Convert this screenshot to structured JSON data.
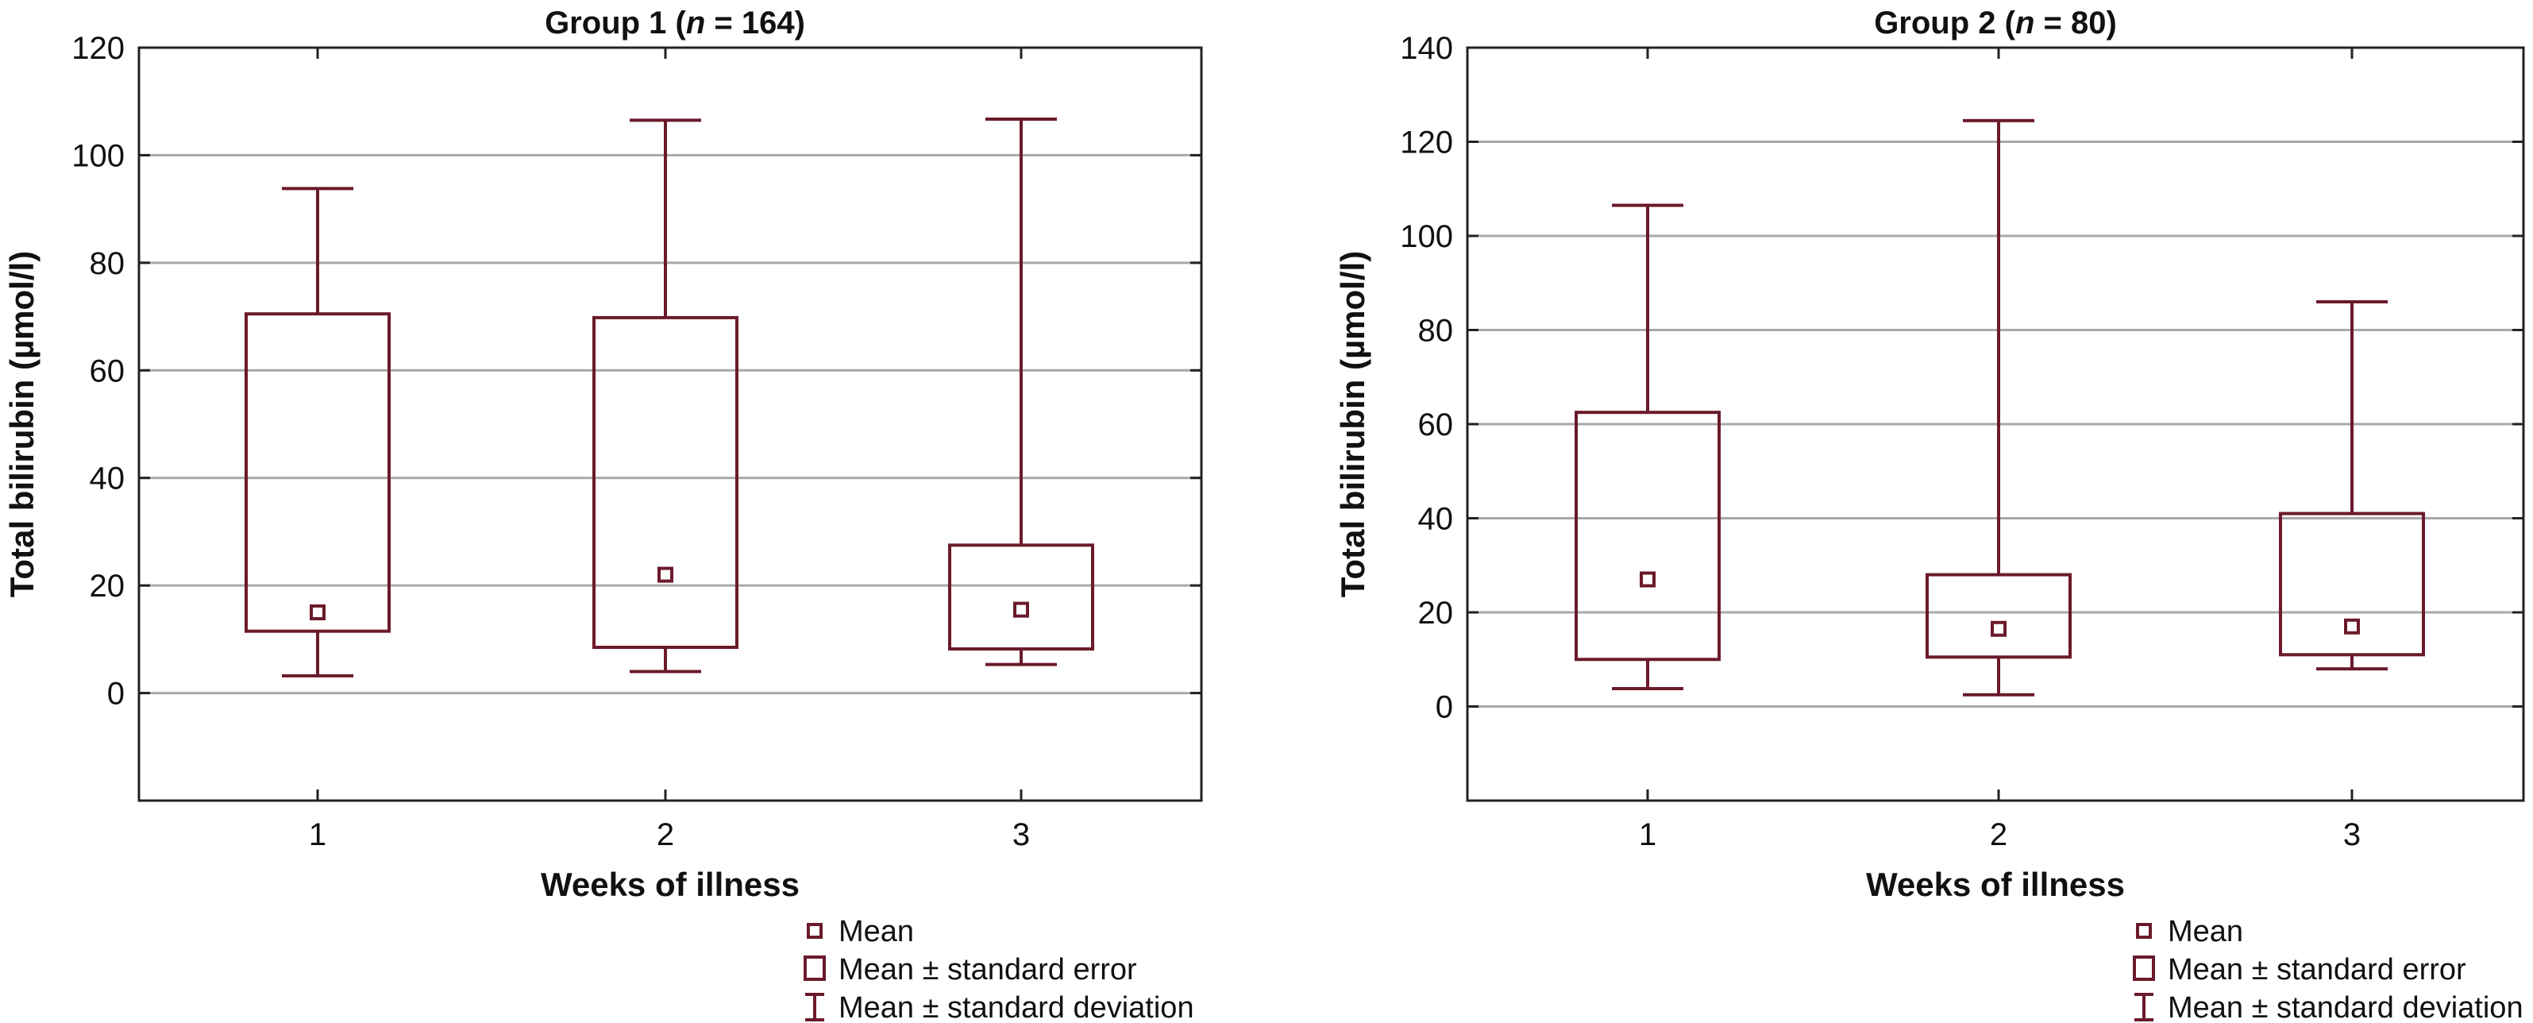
{
  "chart_data": [
    {
      "type": "box",
      "title": "Group 1 (",
      "title_italic": "n",
      "title_suffix": " = 164)",
      "xlabel": "Weeks of illness",
      "ylabel": "Total bilirubin (µmol/l)",
      "categories": [
        "1",
        "2",
        "3"
      ],
      "yticks": [
        "0",
        "20",
        "40",
        "60",
        "80",
        "100",
        "120"
      ],
      "ylim": [
        -20,
        120
      ],
      "grid": true,
      "series": [
        {
          "name": "Mean",
          "values": [
            15,
            22,
            15.5
          ]
        },
        {
          "name": "Mean ± standard error",
          "lower": [
            11.5,
            8.5,
            8.2
          ],
          "upper": [
            70.5,
            69.8,
            27.5
          ]
        },
        {
          "name": "Mean ± standard deviation",
          "lower": [
            3.2,
            4,
            5.3
          ],
          "upper": [
            93.8,
            106.5,
            106.7
          ]
        }
      ],
      "legend": [
        "Mean",
        "Mean ± standard error",
        "Mean ± standard deviation"
      ],
      "legend_position": "bottom-right"
    },
    {
      "type": "box",
      "title": "Group 2 (",
      "title_italic": "n",
      "title_suffix": " = 80)",
      "xlabel": "Weeks of illness",
      "ylabel": "Total bilirubin (µmol/l)",
      "categories": [
        "1",
        "2",
        "3"
      ],
      "yticks": [
        "0",
        "20",
        "40",
        "60",
        "80",
        "100",
        "120",
        "140"
      ],
      "ylim": [
        -20,
        140
      ],
      "grid": true,
      "series": [
        {
          "name": "Mean",
          "values": [
            27,
            16.5,
            17
          ]
        },
        {
          "name": "Mean ± standard error",
          "lower": [
            10,
            10.5,
            11
          ],
          "upper": [
            62.5,
            28,
            41
          ]
        },
        {
          "name": "Mean ± standard deviation",
          "lower": [
            3.8,
            2.5,
            8
          ],
          "upper": [
            106.5,
            124.5,
            86
          ]
        }
      ],
      "legend": [
        "Mean",
        "Mean ± standard error",
        "Mean ± standard deviation"
      ],
      "legend_position": "bottom-right"
    }
  ],
  "style": {
    "box_color": "#6b1a2b",
    "grid_color": "#a8a8a8",
    "axis_color": "#222222"
  }
}
